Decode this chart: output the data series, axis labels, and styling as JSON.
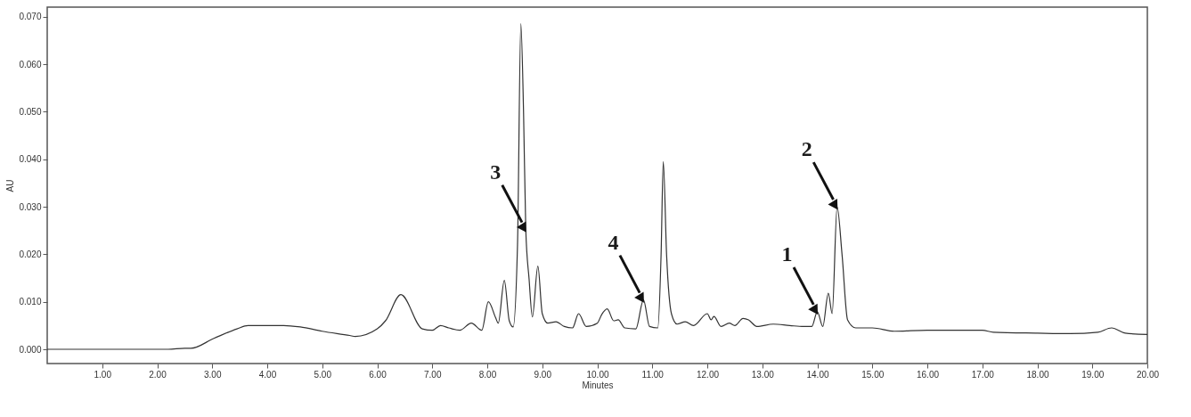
{
  "chart_data": {
    "type": "line",
    "xlabel": "Minutes",
    "ylabel": "AU",
    "x": [
      0,
      2.2,
      2.5,
      2.61,
      3.03,
      3.45,
      3.65,
      4.0,
      4.3,
      4.6,
      5.0,
      5.5,
      5.6,
      6.0,
      6.15,
      6.43,
      6.82,
      7.0,
      7.15,
      7.3,
      7.5,
      7.71,
      7.9,
      8.02,
      8.15,
      8.2,
      8.31,
      8.4,
      8.47,
      8.55,
      8.61,
      8.66,
      8.7,
      8.76,
      8.82,
      8.92,
      9.0,
      9.1,
      9.25,
      9.4,
      9.55,
      9.66,
      9.8,
      10.0,
      10.08,
      10.18,
      10.3,
      10.38,
      10.5,
      10.7,
      10.84,
      10.95,
      11.1,
      11.16,
      11.2,
      11.26,
      11.35,
      11.45,
      11.6,
      11.75,
      12.0,
      12.07,
      12.12,
      12.25,
      12.4,
      12.5,
      12.65,
      12.75,
      12.9,
      13.2,
      13.5,
      13.75,
      13.9,
      14.0,
      14.1,
      14.2,
      14.27,
      14.36,
      14.45,
      14.55,
      14.7,
      15.0,
      15.4,
      16.0,
      17.0,
      17.2,
      18.0,
      18.6,
      19.1,
      19.35,
      19.6,
      20.0
    ],
    "series": [
      {
        "color": "#333333",
        "values": [
          0,
          0,
          0.0002,
          0.0002,
          0.0023,
          0.0043,
          0.005,
          0.005,
          0.005,
          0.0047,
          0.0038,
          0.0029,
          0.0027,
          0.0043,
          0.006,
          0.0115,
          0.0043,
          0.004,
          0.005,
          0.0045,
          0.004,
          0.0055,
          0.004,
          0.01,
          0.0067,
          0.0055,
          0.0145,
          0.006,
          0.0047,
          0.022,
          0.0685,
          0.0497,
          0.0252,
          0.0148,
          0.0068,
          0.0175,
          0.0075,
          0.0055,
          0.0058,
          0.0048,
          0.0045,
          0.0075,
          0.0048,
          0.0055,
          0.0073,
          0.0085,
          0.006,
          0.0062,
          0.0045,
          0.0043,
          0.0104,
          0.0048,
          0.0045,
          0.0199,
          0.0395,
          0.0199,
          0.0074,
          0.0053,
          0.0058,
          0.005,
          0.0075,
          0.0062,
          0.0069,
          0.0048,
          0.0055,
          0.005,
          0.0065,
          0.0062,
          0.0048,
          0.0053,
          0.005,
          0.0048,
          0.0048,
          0.0079,
          0.0048,
          0.0118,
          0.0075,
          0.03,
          0.0199,
          0.0062,
          0.0045,
          0.0045,
          0.0038,
          0.004,
          0.004,
          0.0036,
          0.0034,
          0.0033,
          0.0036,
          0.0045,
          0.0034,
          0.0031
        ]
      }
    ],
    "xlim": [
      0,
      20
    ],
    "ylim": [
      -0.003,
      0.072
    ],
    "xticks": [
      {
        "value": 1,
        "label": "1.00"
      },
      {
        "value": 2,
        "label": "2.00"
      },
      {
        "value": 3,
        "label": "3.00"
      },
      {
        "value": 4,
        "label": "4.00"
      },
      {
        "value": 5,
        "label": "5.00"
      },
      {
        "value": 6,
        "label": "6.00"
      },
      {
        "value": 7,
        "label": "7.00"
      },
      {
        "value": 8,
        "label": "8.00"
      },
      {
        "value": 9,
        "label": "9.00"
      },
      {
        "value": 10,
        "label": "10.00"
      },
      {
        "value": 11,
        "label": "11.00"
      },
      {
        "value": 12,
        "label": "12.00"
      },
      {
        "value": 13,
        "label": "13.00"
      },
      {
        "value": 14,
        "label": "14.00"
      },
      {
        "value": 15,
        "label": "15.00"
      },
      {
        "value": 16,
        "label": "16.00"
      },
      {
        "value": 17,
        "label": "17.00"
      },
      {
        "value": 18,
        "label": "18.00"
      },
      {
        "value": 19,
        "label": "19.00"
      },
      {
        "value": 20,
        "label": "20.00"
      }
    ],
    "yticks": [
      {
        "value": 0,
        "label": "0.000"
      },
      {
        "value": 0.01,
        "label": "0.010"
      },
      {
        "value": 0.02,
        "label": "0.020"
      },
      {
        "value": 0.03,
        "label": "0.030"
      },
      {
        "value": 0.04,
        "label": "0.040"
      },
      {
        "value": 0.05,
        "label": "0.050"
      },
      {
        "value": 0.06,
        "label": "0.060"
      },
      {
        "value": 0.07,
        "label": "0.070"
      }
    ],
    "grid": false,
    "annotations": [
      {
        "text": "3",
        "x": 8.7,
        "y": 0.0252
      },
      {
        "text": "4",
        "x": 10.84,
        "y": 0.0104
      },
      {
        "text": "1",
        "x": 14.0,
        "y": 0.0079
      },
      {
        "text": "2",
        "x": 14.36,
        "y": 0.03
      }
    ]
  }
}
